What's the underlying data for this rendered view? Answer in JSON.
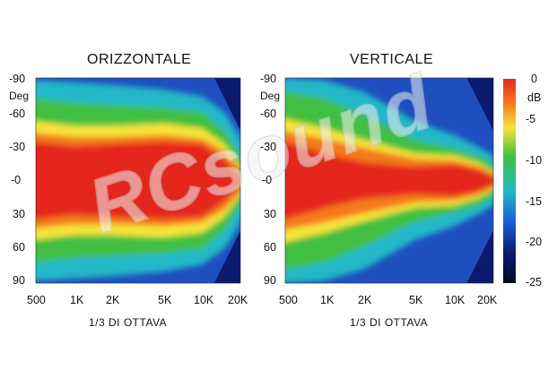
{
  "chart_data": [
    {
      "type": "heatmap",
      "title": "ORIZZONTALE",
      "xlabel": "1/3 DI OTTAVA",
      "ylabel": "Deg",
      "x_ticks": [
        "500",
        "1K",
        "2K",
        "5K",
        "10K",
        "20K"
      ],
      "y_ticks": [
        "-90",
        "-60",
        "-30",
        "-0",
        "30",
        "60",
        "90"
      ],
      "x_range_hz": [
        500,
        20000
      ],
      "y_range_deg": [
        -90,
        90
      ],
      "contours": {
        "level_minus_15_db_half_width_deg": [
          [
            500,
            88
          ],
          [
            1000,
            86
          ],
          [
            2000,
            84
          ],
          [
            5000,
            80
          ],
          [
            10000,
            74
          ],
          [
            15000,
            60
          ],
          [
            20000,
            38
          ]
        ],
        "level_minus_10_db_half_width_deg": [
          [
            500,
            72
          ],
          [
            1000,
            68
          ],
          [
            2000,
            66
          ],
          [
            5000,
            64
          ],
          [
            10000,
            60
          ],
          [
            15000,
            44
          ],
          [
            20000,
            22
          ]
        ],
        "level_minus_5_db_half_width_deg": [
          [
            500,
            52
          ],
          [
            1000,
            48
          ],
          [
            2000,
            48
          ],
          [
            5000,
            50
          ],
          [
            10000,
            46
          ],
          [
            15000,
            32
          ],
          [
            20000,
            12
          ]
        ],
        "level_minus_2_db_half_width_deg": [
          [
            500,
            34
          ],
          [
            1000,
            30
          ],
          [
            2000,
            32
          ],
          [
            5000,
            34
          ],
          [
            10000,
            32
          ],
          [
            15000,
            18
          ],
          [
            20000,
            4
          ]
        ]
      }
    },
    {
      "type": "heatmap",
      "title": "VERTICALE",
      "xlabel": "1/3 DI OTTAVA",
      "ylabel": "Deg",
      "x_ticks": [
        "500",
        "1K",
        "2K",
        "5K",
        "10K",
        "20K"
      ],
      "y_ticks": [
        "-90",
        "-60",
        "-30",
        "-0",
        "30",
        "60",
        "90"
      ],
      "x_range_hz": [
        500,
        20000
      ],
      "y_range_deg": [
        -90,
        90
      ],
      "contours": {
        "level_minus_15_db_half_width_deg": [
          [
            500,
            90
          ],
          [
            1000,
            88
          ],
          [
            2000,
            78
          ],
          [
            5000,
            52
          ],
          [
            10000,
            40
          ],
          [
            15000,
            30
          ],
          [
            20000,
            22
          ]
        ],
        "level_minus_10_db_half_width_deg": [
          [
            500,
            78
          ],
          [
            1000,
            72
          ],
          [
            2000,
            58
          ],
          [
            5000,
            36
          ],
          [
            10000,
            28
          ],
          [
            15000,
            22
          ],
          [
            20000,
            14
          ]
        ],
        "level_minus_5_db_half_width_deg": [
          [
            500,
            54
          ],
          [
            1000,
            46
          ],
          [
            2000,
            36
          ],
          [
            5000,
            24
          ],
          [
            10000,
            22
          ],
          [
            15000,
            16
          ],
          [
            20000,
            8
          ]
        ],
        "level_minus_2_db_half_width_deg": [
          [
            500,
            34
          ],
          [
            1000,
            24
          ],
          [
            2000,
            16
          ],
          [
            5000,
            12
          ],
          [
            10000,
            14
          ],
          [
            15000,
            10
          ],
          [
            20000,
            4
          ]
        ]
      }
    }
  ],
  "colorbar": {
    "unit": "dB",
    "ticks": [
      "0",
      "-5",
      "-10",
      "-15",
      "-20",
      "-25"
    ],
    "range_db": [
      0,
      -25
    ],
    "colors": [
      "#e5281f",
      "#f47a1c",
      "#f6e43a",
      "#3fbf3f",
      "#22b8c8",
      "#1a5fd6",
      "#0b1a6e",
      "#050a20"
    ]
  },
  "watermark": "RCsound"
}
